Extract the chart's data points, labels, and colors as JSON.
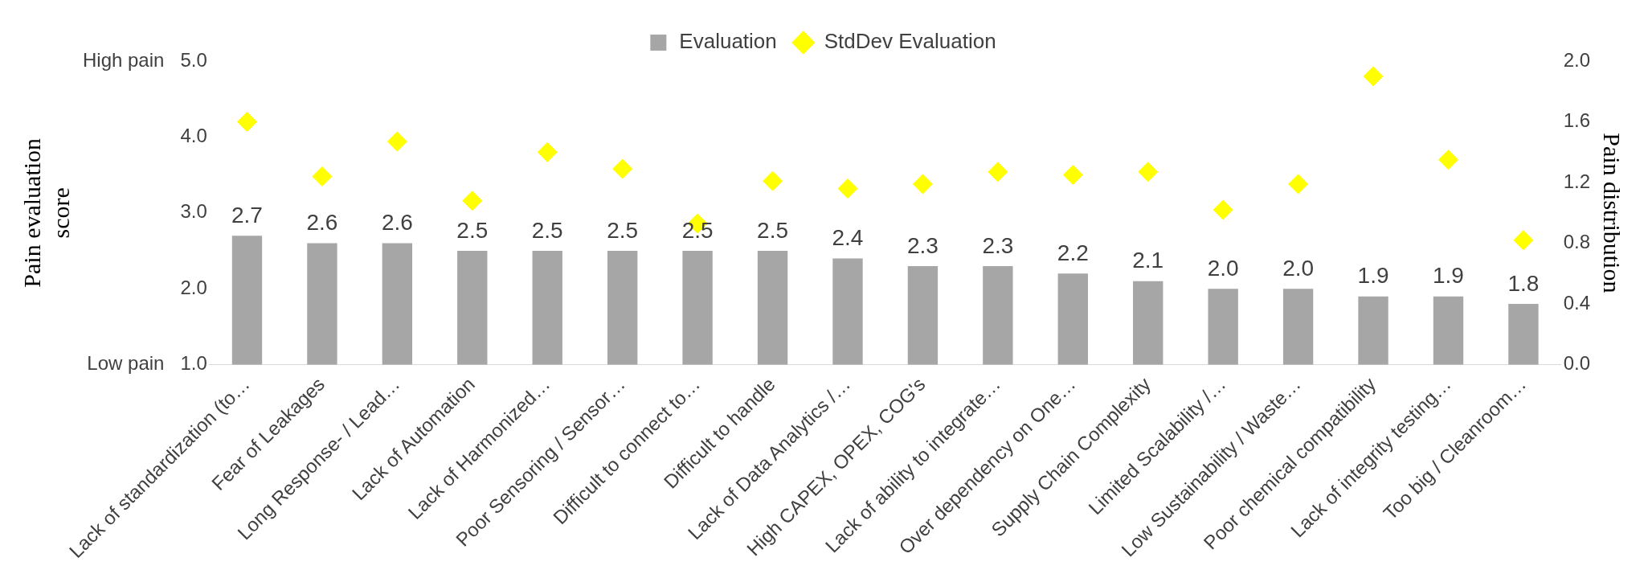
{
  "chart_data": {
    "type": "bar",
    "categories": [
      "Lack of standardization (to…",
      "Fear of Leakages",
      "Long Response- / Lead…",
      "Lack of Automation",
      "Lack of Harmonized…",
      "Poor Sensoring / Sensor…",
      "Difficult to connect to…",
      "Difficult to handle",
      "Lack of Data Analytics /…",
      "High CAPEX, OPEX, COG's",
      "Lack of ability to integrate…",
      "Over dependency on One…",
      "Supply Chain Complexity",
      "Limited Scalability /…",
      "Low Sustainability / Waste…",
      "Poor chemical compatibility",
      "Lack of integrity testing…",
      "Too big / Cleanroom…"
    ],
    "series": [
      {
        "name": "Evaluation",
        "color": "#a6a6a6",
        "values": [
          2.7,
          2.6,
          2.6,
          2.5,
          2.5,
          2.5,
          2.5,
          2.5,
          2.4,
          2.3,
          2.3,
          2.2,
          2.1,
          2.0,
          2.0,
          1.9,
          1.9,
          1.8
        ],
        "value_labels": [
          "2.7",
          "2.6",
          "2.6",
          "2.5",
          "2.5",
          "2.5",
          "2.5",
          "2.5",
          "2.4",
          "2.3",
          "2.3",
          "2.2",
          "2.1",
          "2.0",
          "2.0",
          "1.9",
          "1.9",
          "1.8"
        ]
      },
      {
        "name": "StdDev Evaluation",
        "type": "scatter",
        "axis": "y2",
        "color": "#ffff00",
        "marker": "diamond",
        "values": [
          1.6,
          1.24,
          1.47,
          1.08,
          1.4,
          1.29,
          0.93,
          1.21,
          1.16,
          1.19,
          1.27,
          1.25,
          1.27,
          1.02,
          1.19,
          1.9,
          1.35,
          0.82
        ]
      }
    ],
    "ylabel": "Pain evaluation score",
    "y2label": "Pain distribution",
    "ylim": [
      1,
      5
    ],
    "yticks": [
      {
        "value": 1,
        "label": "Low pain   1.0"
      },
      {
        "value": 2,
        "label": "2.0"
      },
      {
        "value": 3,
        "label": "3.0"
      },
      {
        "value": 4,
        "label": "4.0"
      },
      {
        "value": 5,
        "label": "High pain   5.0"
      }
    ],
    "y2lim": [
      0,
      2
    ],
    "y2ticks": [
      {
        "value": 0,
        "label": "0.0"
      },
      {
        "value": 0.4,
        "label": "0.4"
      },
      {
        "value": 0.8,
        "label": "0.8"
      },
      {
        "value": 1.2,
        "label": "1.2"
      },
      {
        "value": 1.6,
        "label": "1.6"
      },
      {
        "value": 2,
        "label": "2.0"
      }
    ],
    "grid": false,
    "legend": "top"
  }
}
